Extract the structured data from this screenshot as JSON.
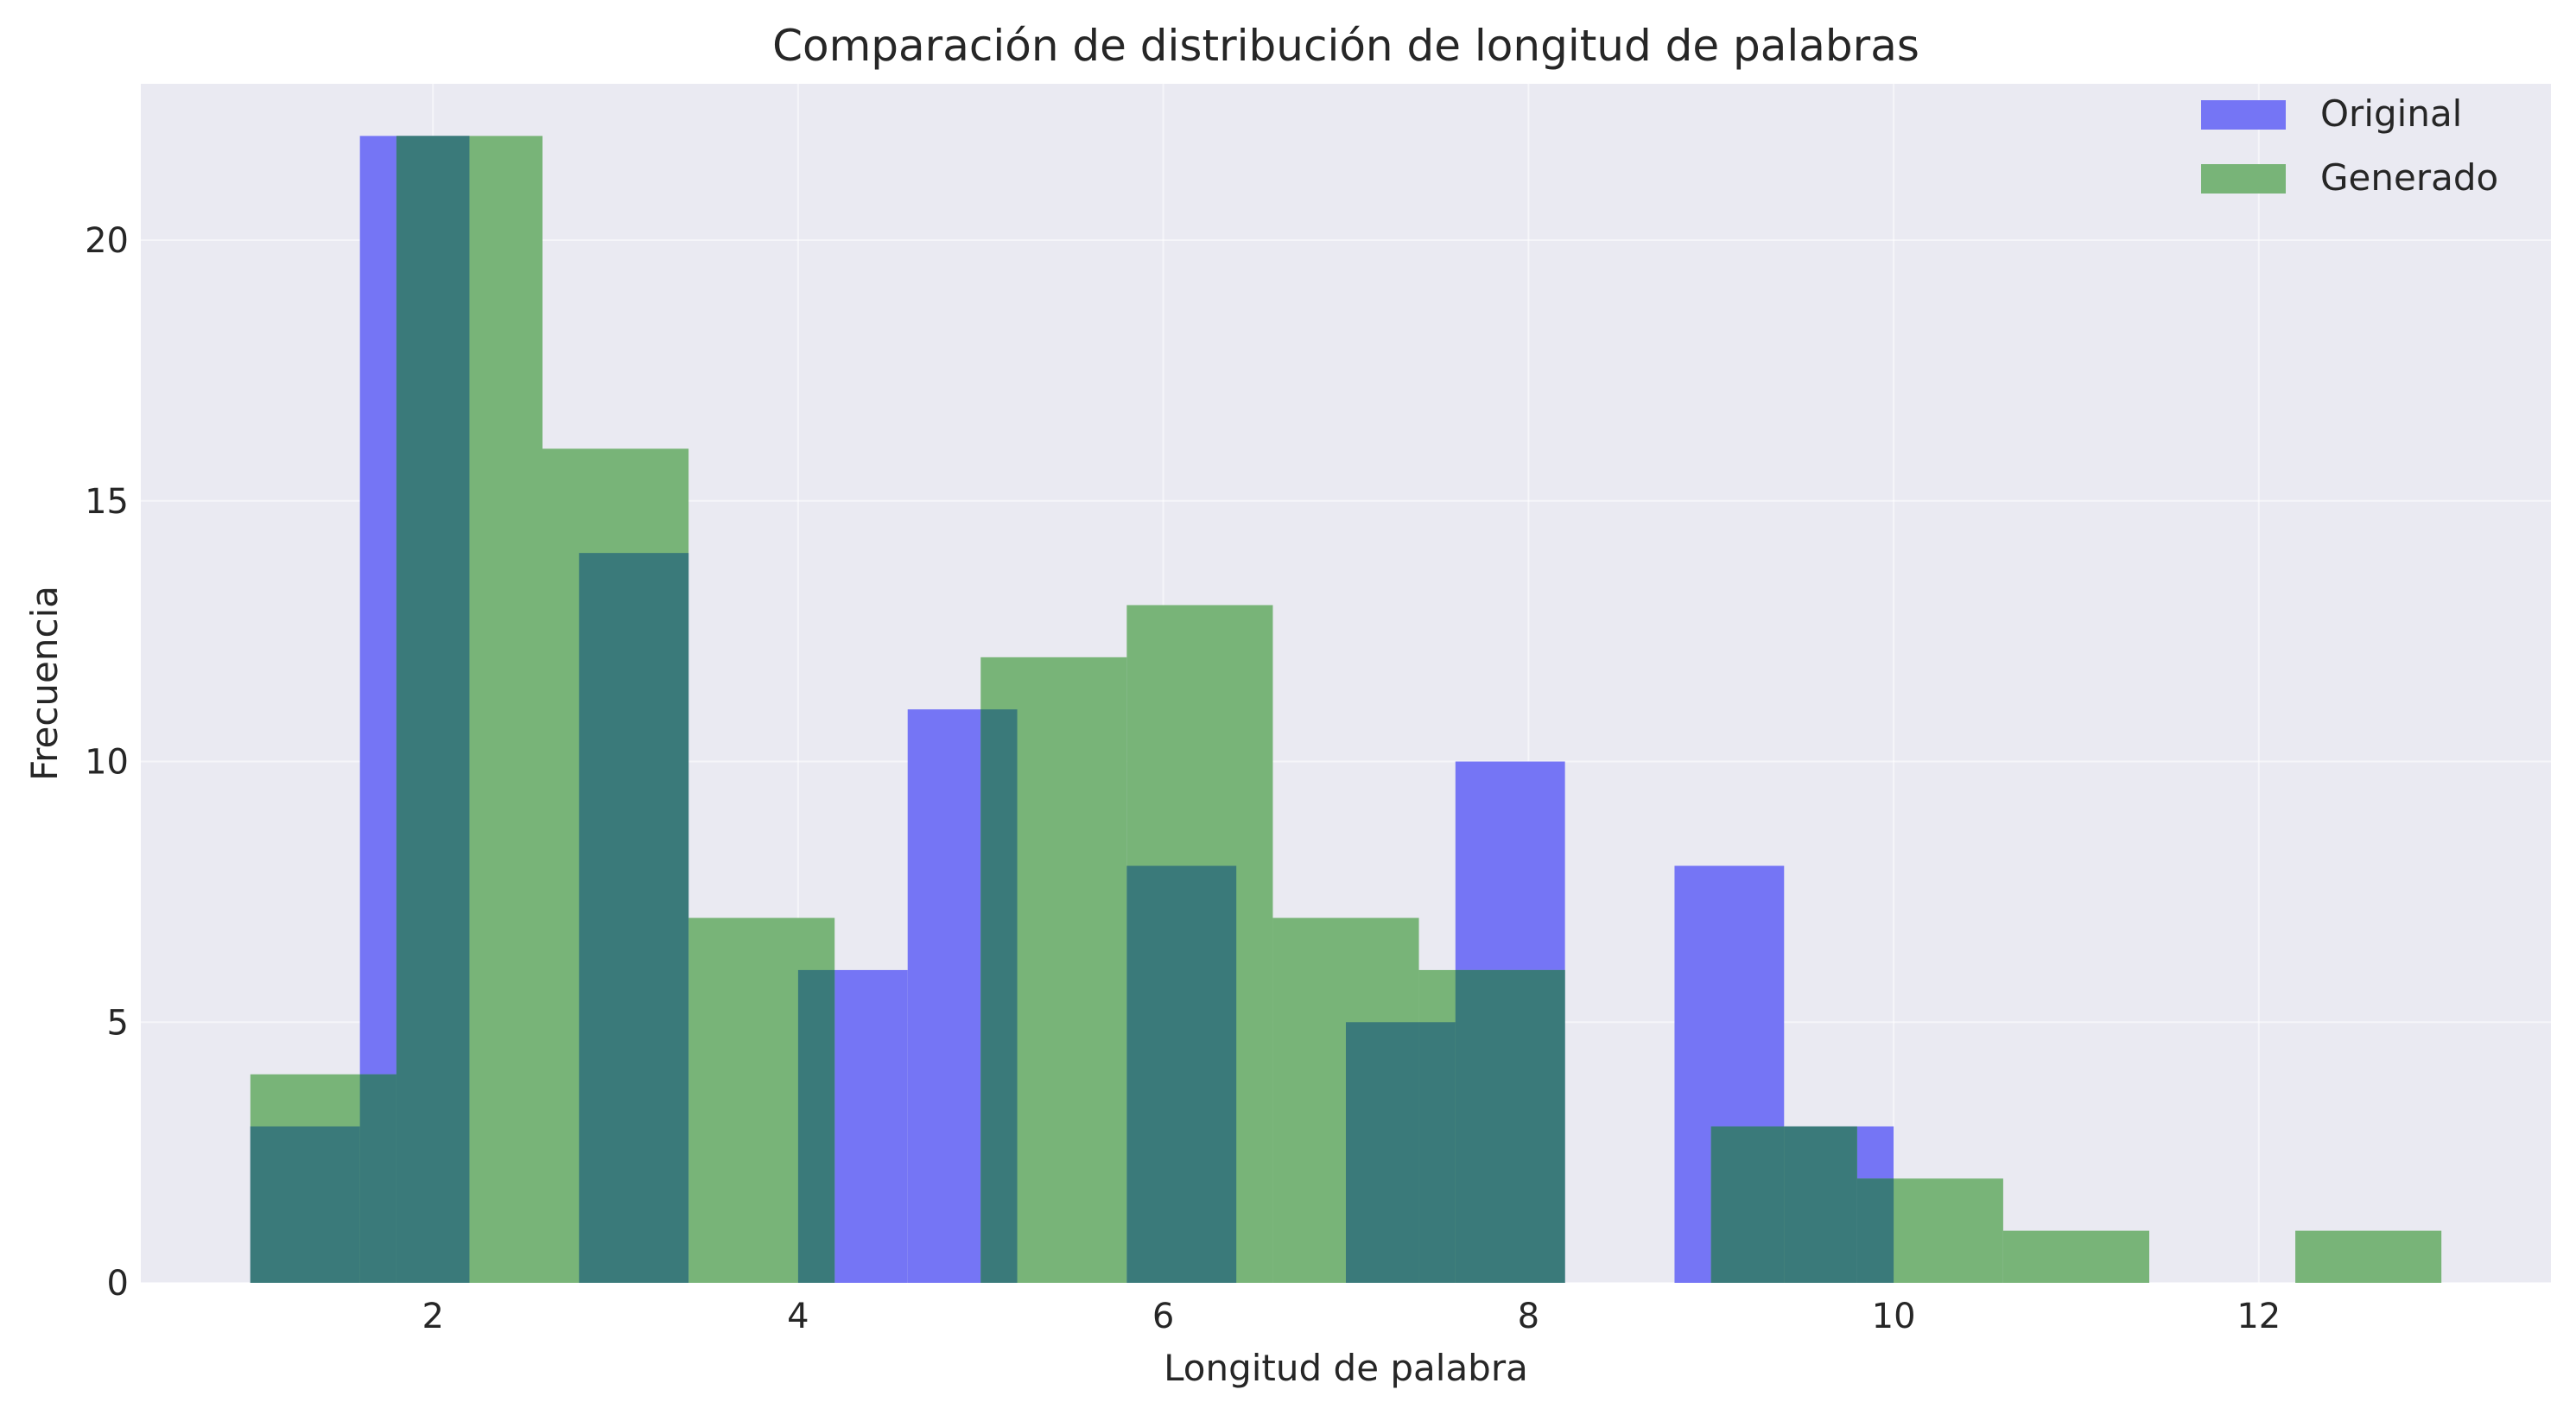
{
  "chart_data": {
    "type": "bar",
    "title": "Comparación de distribución de longitud de palabras",
    "xlabel": "Longitud de palabra",
    "ylabel": "Frecuencia",
    "xlim": [
      0.4,
      13.6
    ],
    "ylim": [
      0,
      23
    ],
    "xticks": [
      2,
      4,
      6,
      8,
      10,
      12
    ],
    "yticks": [
      0,
      5,
      10,
      15,
      20
    ],
    "grid": true,
    "legend_position": "top-right",
    "overlap_color": "#3a7a7a",
    "series": [
      {
        "name": "Original",
        "color": "#7575f5",
        "bins": [
          {
            "x0": 1.0,
            "x1": 1.6,
            "value": 3
          },
          {
            "x0": 1.6,
            "x1": 2.2,
            "value": 22
          },
          {
            "x0": 2.8,
            "x1": 3.4,
            "value": 14
          },
          {
            "x0": 4.0,
            "x1": 4.6,
            "value": 6
          },
          {
            "x0": 4.6,
            "x1": 5.2,
            "value": 11
          },
          {
            "x0": 5.8,
            "x1": 6.4,
            "value": 8
          },
          {
            "x0": 7.0,
            "x1": 7.6,
            "value": 5
          },
          {
            "x0": 7.6,
            "x1": 8.2,
            "value": 10
          },
          {
            "x0": 8.8,
            "x1": 9.4,
            "value": 8
          },
          {
            "x0": 9.4,
            "x1": 10.0,
            "value": 3
          }
        ]
      },
      {
        "name": "Generado",
        "color": "#78b478",
        "bins": [
          {
            "x0": 1.0,
            "x1": 1.8,
            "value": 4
          },
          {
            "x0": 1.8,
            "x1": 2.6,
            "value": 22
          },
          {
            "x0": 2.6,
            "x1": 3.4,
            "value": 16
          },
          {
            "x0": 3.4,
            "x1": 4.2,
            "value": 7
          },
          {
            "x0": 4.2,
            "x1": 5.0,
            "value": 0
          },
          {
            "x0": 5.0,
            "x1": 5.8,
            "value": 12
          },
          {
            "x0": 5.8,
            "x1": 6.6,
            "value": 13
          },
          {
            "x0": 6.6,
            "x1": 7.4,
            "value": 7
          },
          {
            "x0": 7.4,
            "x1": 8.2,
            "value": 6
          },
          {
            "x0": 8.2,
            "x1": 9.0,
            "value": 0
          },
          {
            "x0": 9.0,
            "x1": 9.8,
            "value": 3
          },
          {
            "x0": 9.8,
            "x1": 10.6,
            "value": 2
          },
          {
            "x0": 10.6,
            "x1": 11.4,
            "value": 1
          },
          {
            "x0": 11.4,
            "x1": 12.2,
            "value": 0
          },
          {
            "x0": 12.2,
            "x1": 13.0,
            "value": 1
          }
        ]
      }
    ]
  }
}
